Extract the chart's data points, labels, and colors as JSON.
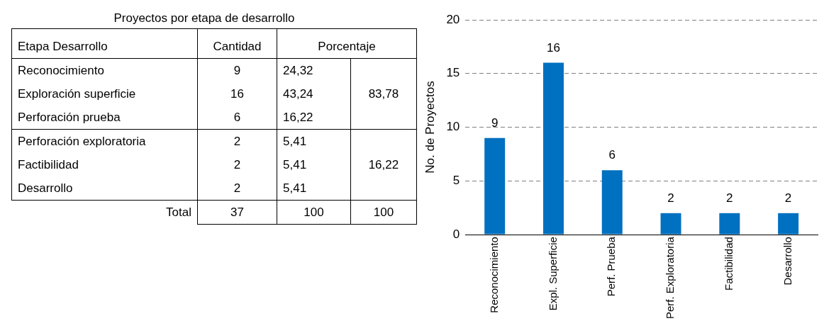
{
  "chart_data": [
    {
      "type": "other",
      "title": "Proyectos por etapa de desarrollo",
      "categories": [
        "Reconocimiento",
        "Exploración superficie",
        "Perforación prueba",
        "Perforación exploratoria",
        "Factibilidad",
        "Desarrollo"
      ],
      "annotations": [
        "Etapa Desarrollo",
        "Cantidad",
        "Porcentaje",
        "9",
        "24,32",
        "16",
        "43,24",
        "6",
        "16,22",
        "2",
        "5,41",
        "2",
        "5,41",
        "2",
        "5,41",
        "83,78",
        "16,22",
        "Total",
        "37",
        "100",
        "100"
      ]
    },
    {
      "type": "bar",
      "categories": [
        "Reconocimiento",
        "Expl. Superficie",
        "Perf. Prueba",
        "Perf. Exploratoria",
        "Factibilidad",
        "Desarrollo"
      ],
      "values": [
        9,
        16,
        6,
        2,
        2,
        2
      ],
      "color": "#0070c0",
      "ylim": [
        0,
        20
      ],
      "yticks": [
        0,
        5,
        10,
        15,
        20
      ],
      "grid": "y",
      "ylabel": "No. de Proyectos",
      "data_labels": true,
      "legend": false
    }
  ]
}
